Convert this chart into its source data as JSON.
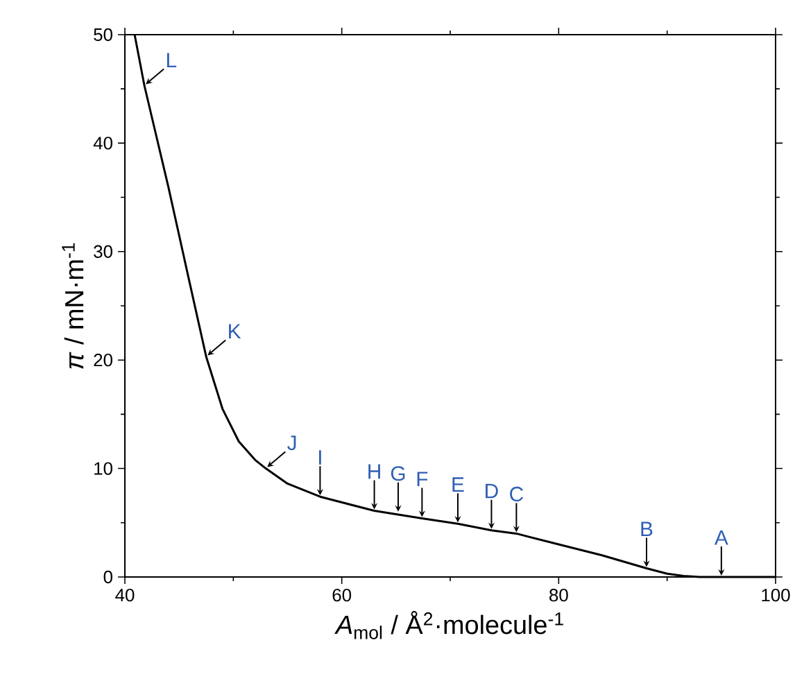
{
  "chart_data": {
    "type": "line",
    "xlabel": "*A*$_{mol}$ / Å$^{2}$·molecule$^{-1}$",
    "ylabel": "*π* / mN·m$^{-1}$",
    "x": [
      40.9,
      41.8,
      44,
      46,
      47.5,
      49,
      50.5,
      52,
      53,
      55,
      58,
      63,
      67.4,
      70.7,
      73.8,
      76.1,
      80,
      84,
      88.1,
      90,
      91.5,
      93,
      100
    ],
    "series": [
      {
        "color": "#000000",
        "values": [
          50,
          45.3,
          36,
          27,
          20.3,
          15.5,
          12.5,
          10.8,
          10.0,
          8.6,
          7.4,
          6.1,
          5.4,
          4.9,
          4.3,
          4.0,
          3.0,
          2.0,
          0.8,
          0.3,
          0.1,
          0,
          0
        ]
      }
    ],
    "xlim": [
      40,
      100
    ],
    "ylim": [
      0,
      50
    ],
    "xticks": [
      40,
      60,
      80,
      100
    ],
    "yticks": [
      0,
      10,
      20,
      30,
      40,
      50
    ],
    "annotations": [
      {
        "text": "A",
        "x": 95.0,
        "y": 0
      },
      {
        "text": "B",
        "x": 88.1,
        "y": 0.8
      },
      {
        "text": "C",
        "x": 76.1,
        "y": 4.0
      },
      {
        "text": "D",
        "x": 73.8,
        "y": 4.3
      },
      {
        "text": "E",
        "x": 70.7,
        "y": 4.9
      },
      {
        "text": "F",
        "x": 67.4,
        "y": 5.4
      },
      {
        "text": "G",
        "x": 65.2,
        "y": 5.9
      },
      {
        "text": "H",
        "x": 63.0,
        "y": 6.1
      },
      {
        "text": "I",
        "x": 58.0,
        "y": 7.4
      },
      {
        "text": "J",
        "x": 53.0,
        "y": 10.0
      },
      {
        "text": "K",
        "x": 47.5,
        "y": 20.3
      },
      {
        "text": "L",
        "x": 41.8,
        "y": 45.3
      }
    ]
  }
}
